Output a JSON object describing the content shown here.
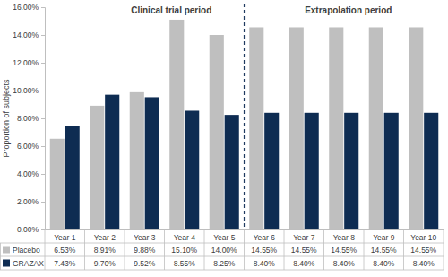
{
  "chart_data": {
    "type": "bar",
    "y_label": "Proportion of subjects",
    "annotations": [
      "Clinical trial period",
      "Extrapolation period"
    ],
    "categories": [
      "Year 1",
      "Year 2",
      "Year 3",
      "Year 4",
      "Year 5",
      "Year 6",
      "Year 7",
      "Year 8",
      "Year 9",
      "Year 10"
    ],
    "series": [
      {
        "name": "Placebo",
        "color": "#bfbfbf",
        "values": [
          6.53,
          8.91,
          9.88,
          15.1,
          14.0,
          14.55,
          14.55,
          14.55,
          14.55,
          14.55
        ],
        "value_labels": [
          "6.53%",
          "8.91%",
          "9.88%",
          "15.10%",
          "14.00%",
          "14.55%",
          "14.55%",
          "14.55%",
          "14.55%",
          "14.55%"
        ]
      },
      {
        "name": "GRAZAX",
        "color": "#0e2c52",
        "values": [
          7.43,
          9.7,
          9.52,
          8.55,
          8.25,
          8.4,
          8.4,
          8.4,
          8.4,
          8.4
        ],
        "value_labels": [
          "7.43%",
          "9.70%",
          "9.52%",
          "8.55%",
          "8.25%",
          "8.40%",
          "8.40%",
          "8.40%",
          "8.40%",
          "8.40%"
        ]
      }
    ],
    "ylim": [
      0,
      16
    ],
    "yticks": [
      {
        "value": 0,
        "label": "0.00%"
      },
      {
        "value": 2,
        "label": "2.00%"
      },
      {
        "value": 4,
        "label": "4.00%"
      },
      {
        "value": 6,
        "label": "6.00%"
      },
      {
        "value": 8,
        "label": "8.00%"
      },
      {
        "value": 10,
        "label": "10.00%"
      },
      {
        "value": 12,
        "label": "12.00%"
      },
      {
        "value": 14,
        "label": "14.00%"
      },
      {
        "value": 16,
        "label": "16.00%"
      }
    ],
    "grid": false,
    "data_labels": true
  }
}
